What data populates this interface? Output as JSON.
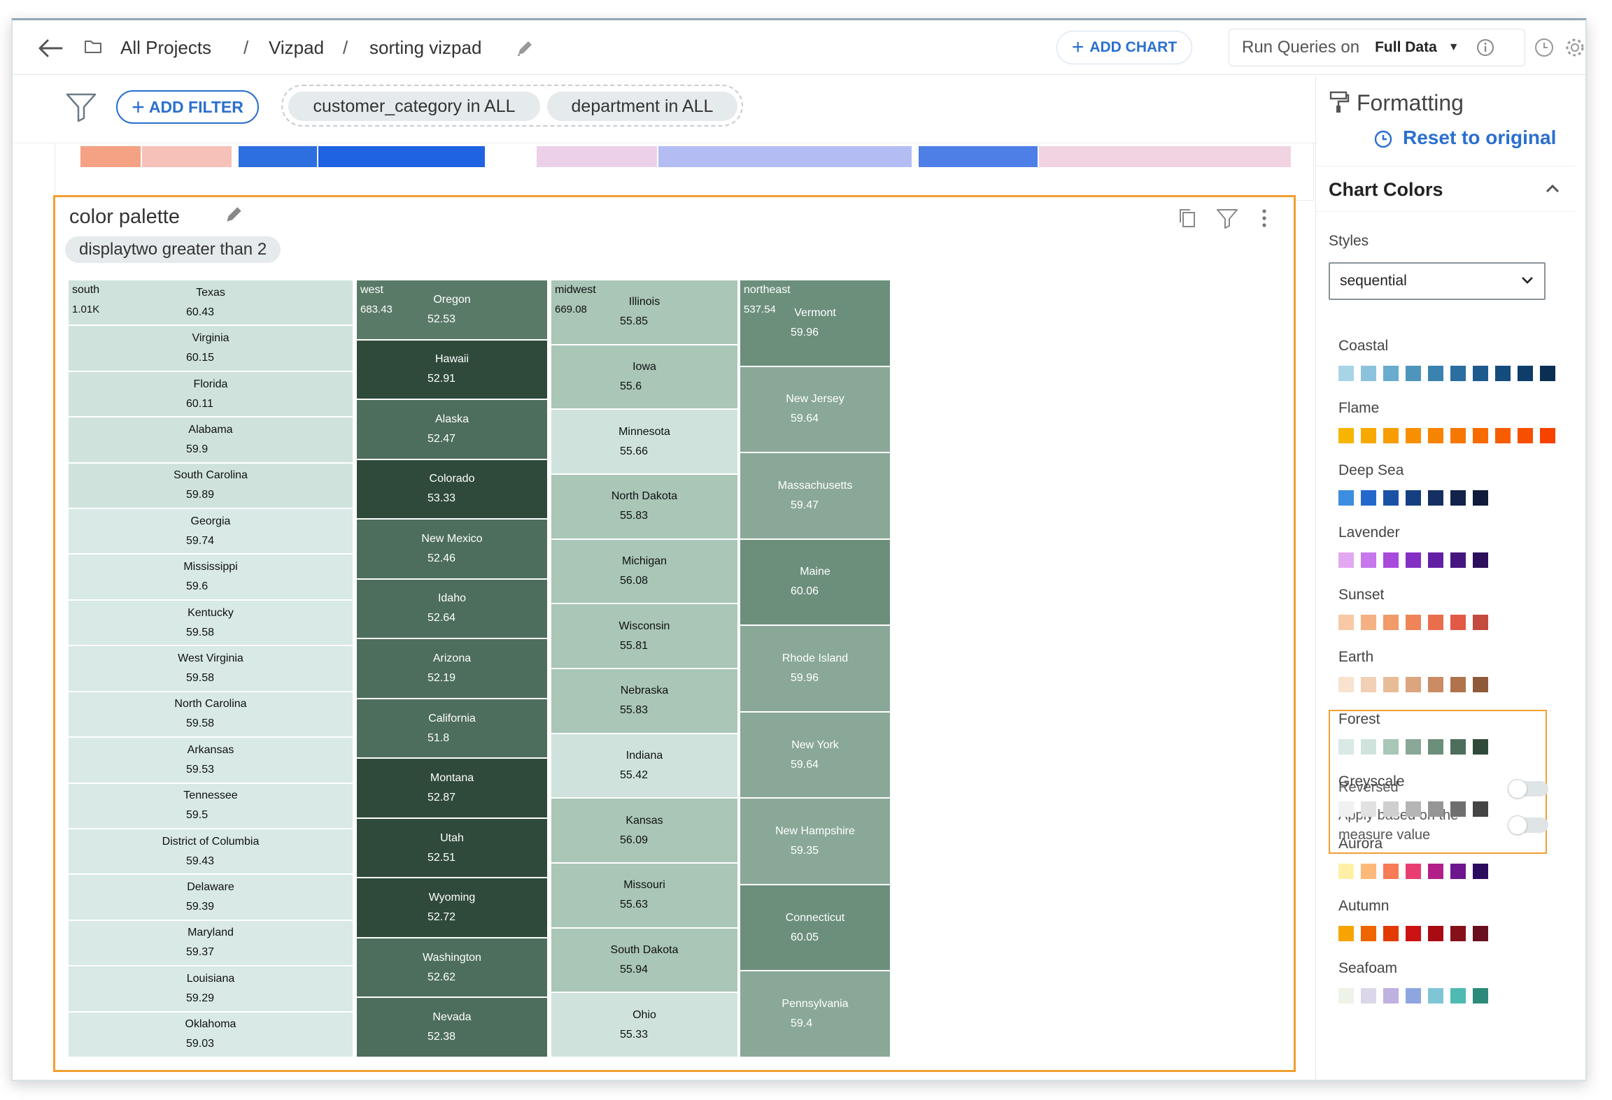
{
  "header": {
    "breadcrumbs": [
      "All Projects",
      "Vizpad",
      "sorting vizpad"
    ],
    "separator": "/",
    "add_chart_label": "ADD CHART",
    "run_queries_label": "Run Queries on",
    "run_queries_value": "Full Data"
  },
  "filter_bar": {
    "add_filter_label": "ADD FILTER",
    "chips": [
      "customer_category in ALL",
      "department in ALL"
    ]
  },
  "prev_chart_strip": {
    "colors": [
      "#f4a184",
      "#f6c1b8",
      "#2e6fe0",
      "#1f63e3",
      "#ecd0ea",
      "#b3bdf4",
      "#4e7fe6",
      "#f2d3e2"
    ]
  },
  "card": {
    "title": "color palette",
    "filter_chip": "displaytwo greater than 2"
  },
  "chart_data": {
    "type": "treemap",
    "measure_total_label": "displaytwo",
    "groups": [
      {
        "name": "south",
        "total": "1.01K",
        "items": [
          {
            "name": "Texas",
            "value": 60.43
          },
          {
            "name": "Virginia",
            "value": 60.15
          },
          {
            "name": "Florida",
            "value": 60.11
          },
          {
            "name": "Alabama",
            "value": 59.9
          },
          {
            "name": "South Carolina",
            "value": 59.89
          },
          {
            "name": "Georgia",
            "value": 59.74
          },
          {
            "name": "Mississippi",
            "value": 59.6
          },
          {
            "name": "Kentucky",
            "value": 59.58
          },
          {
            "name": "West Virginia",
            "value": 59.58
          },
          {
            "name": "North Carolina",
            "value": 59.58
          },
          {
            "name": "Arkansas",
            "value": 59.53
          },
          {
            "name": "Tennessee",
            "value": 59.5
          },
          {
            "name": "District of Columbia",
            "value": 59.43
          },
          {
            "name": "Delaware",
            "value": 59.39
          },
          {
            "name": "Maryland",
            "value": 59.37
          },
          {
            "name": "Louisiana",
            "value": 59.29
          },
          {
            "name": "Oklahoma",
            "value": 59.03
          }
        ]
      },
      {
        "name": "west",
        "total": "683.43",
        "items": [
          {
            "name": "Oregon",
            "value": 52.53
          },
          {
            "name": "Hawaii",
            "value": 52.91
          },
          {
            "name": "Alaska",
            "value": 52.47
          },
          {
            "name": "Colorado",
            "value": 53.33
          },
          {
            "name": "New Mexico",
            "value": 52.46
          },
          {
            "name": "Idaho",
            "value": 52.64
          },
          {
            "name": "Arizona",
            "value": 52.19
          },
          {
            "name": "California",
            "value": 51.8
          },
          {
            "name": "Montana",
            "value": 52.87
          },
          {
            "name": "Utah",
            "value": 52.51
          },
          {
            "name": "Wyoming",
            "value": 52.72
          },
          {
            "name": "Washington",
            "value": 52.62
          },
          {
            "name": "Nevada",
            "value": 52.38
          }
        ]
      },
      {
        "name": "midwest",
        "total": "669.08",
        "items": [
          {
            "name": "Illinois",
            "value": 55.85
          },
          {
            "name": "Iowa",
            "value": 55.6
          },
          {
            "name": "Minnesota",
            "value": 55.66
          },
          {
            "name": "North Dakota",
            "value": 55.83
          },
          {
            "name": "Michigan",
            "value": 56.08
          },
          {
            "name": "Wisconsin",
            "value": 55.81
          },
          {
            "name": "Nebraska",
            "value": 55.83
          },
          {
            "name": "Indiana",
            "value": 55.42
          },
          {
            "name": "Kansas",
            "value": 56.09
          },
          {
            "name": "Missouri",
            "value": 55.63
          },
          {
            "name": "South Dakota",
            "value": 55.94
          },
          {
            "name": "Ohio",
            "value": 55.33
          }
        ]
      },
      {
        "name": "northeast",
        "total": "537.54",
        "items": [
          {
            "name": "Vermont",
            "value": 59.96
          },
          {
            "name": "New Jersey",
            "value": 59.64
          },
          {
            "name": "Massachusetts",
            "value": 59.47
          },
          {
            "name": "Maine",
            "value": 60.06
          },
          {
            "name": "Rhode Island",
            "value": 59.96
          },
          {
            "name": "New York",
            "value": 59.64
          },
          {
            "name": "New Hampshire",
            "value": 59.35
          },
          {
            "name": "Connecticut",
            "value": 60.05
          },
          {
            "name": "Pennsylvania",
            "value": 59.4
          }
        ]
      }
    ],
    "tile_colors": {
      "south": [
        "#cfe3dc",
        "#cfe3dc",
        "#cfe3dc",
        "#cfe3dc",
        "#cfe3dc",
        "#d8e9e6",
        "#d8e9e6",
        "#d8e9e6",
        "#d8e9e6",
        "#d8e9e6",
        "#d8e9e6",
        "#d8e9e6",
        "#d8e9e6",
        "#d8e9e6",
        "#d8e9e6",
        "#d8e9e6",
        "#d8e9e6"
      ],
      "west": [
        "#5a7a68",
        "#2f4a3b",
        "#4d6e5c",
        "#2f4a3b",
        "#4d6e5c",
        "#4d6e5c",
        "#4d6e5c",
        "#4d6e5c",
        "#2f4a3b",
        "#2f4a3b",
        "#2f4a3b",
        "#4d6e5c",
        "#4d6e5c"
      ],
      "midwest": [
        "#a9c6b7",
        "#a9c6b7",
        "#cfe3dc",
        "#a9c6b7",
        "#a9c6b7",
        "#a9c6b7",
        "#a9c6b7",
        "#cfe3dc",
        "#a9c6b7",
        "#a9c6b7",
        "#a9c6b7",
        "#cfe3dc"
      ],
      "northeast": [
        "#6c8f7c",
        "#8aa898",
        "#8aa898",
        "#6c8f7c",
        "#8aa898",
        "#8aa898",
        "#8aa898",
        "#6c8f7c",
        "#8aa898"
      ]
    }
  },
  "panel": {
    "title": "Formatting",
    "reset_label": "Reset to original",
    "section_title": "Chart Colors",
    "styles_label": "Styles",
    "styles_value": "sequential",
    "palettes": [
      {
        "name": "Coastal",
        "colors": [
          "#a8d4e6",
          "#8cc3dc",
          "#6aaccd",
          "#4d95bd",
          "#3a82b0",
          "#2a6ea2",
          "#1d5b8f",
          "#144c7d",
          "#0d3d68",
          "#0a2f52"
        ]
      },
      {
        "name": "Flame",
        "colors": [
          "#f7b500",
          "#f7a900",
          "#f79d00",
          "#f79000",
          "#f78400",
          "#f77800",
          "#f76b00",
          "#f75d00",
          "#f74f00",
          "#f74200"
        ]
      },
      {
        "name": "Deep Sea",
        "colors": [
          "#3d8ee0",
          "#2468cc",
          "#1a52a8",
          "#163f82",
          "#152f62",
          "#13224a",
          "#101a3a"
        ]
      },
      {
        "name": "Lavender",
        "colors": [
          "#e3a8f2",
          "#c778ec",
          "#a84bdc",
          "#8530c4",
          "#6420a4",
          "#461680",
          "#2d0f5c"
        ]
      },
      {
        "name": "Sunset",
        "colors": [
          "#f8c9a4",
          "#f5b184",
          "#f19a6a",
          "#ee8458",
          "#ea6e4c",
          "#e25a46",
          "#c44a3e"
        ]
      },
      {
        "name": "Earth",
        "colors": [
          "#f8e3d0",
          "#f2d0b5",
          "#e9bc98",
          "#dca57e",
          "#c98c64",
          "#b0734e",
          "#8f5a3a"
        ]
      },
      {
        "name": "Forest",
        "colors": [
          "#d8e9e6",
          "#cfe3dc",
          "#a9c6b7",
          "#8aa898",
          "#6c8f7c",
          "#4d6e5c",
          "#2f4a3b"
        ]
      },
      {
        "name": "Greyscale",
        "colors": [
          "#f1f1f1",
          "#e1e1e1",
          "#cfcfcf",
          "#b5b5b5",
          "#969696",
          "#6f6f6f",
          "#444444"
        ]
      },
      {
        "name": "Aurora",
        "colors": [
          "#fff0a6",
          "#fdb97a",
          "#f77b56",
          "#e93d72",
          "#b31f8a",
          "#6e168d",
          "#2a0b5e"
        ]
      },
      {
        "name": "Autumn",
        "colors": [
          "#f7a400",
          "#ef6500",
          "#e23a00",
          "#cc1212",
          "#a80c12",
          "#86101a",
          "#6a0f1f"
        ]
      },
      {
        "name": "Seafoam",
        "colors": [
          "#eef3ea",
          "#dcd6ea",
          "#bfb1e0",
          "#8ea6e0",
          "#7fc5d6",
          "#4fbab2",
          "#2b8a7c"
        ]
      }
    ],
    "forest_options": {
      "reversed_label": "Reversed",
      "apply_label_line1": "Apply based on the",
      "apply_label_line2": "measure value",
      "reversed": false,
      "apply_based": false
    }
  }
}
